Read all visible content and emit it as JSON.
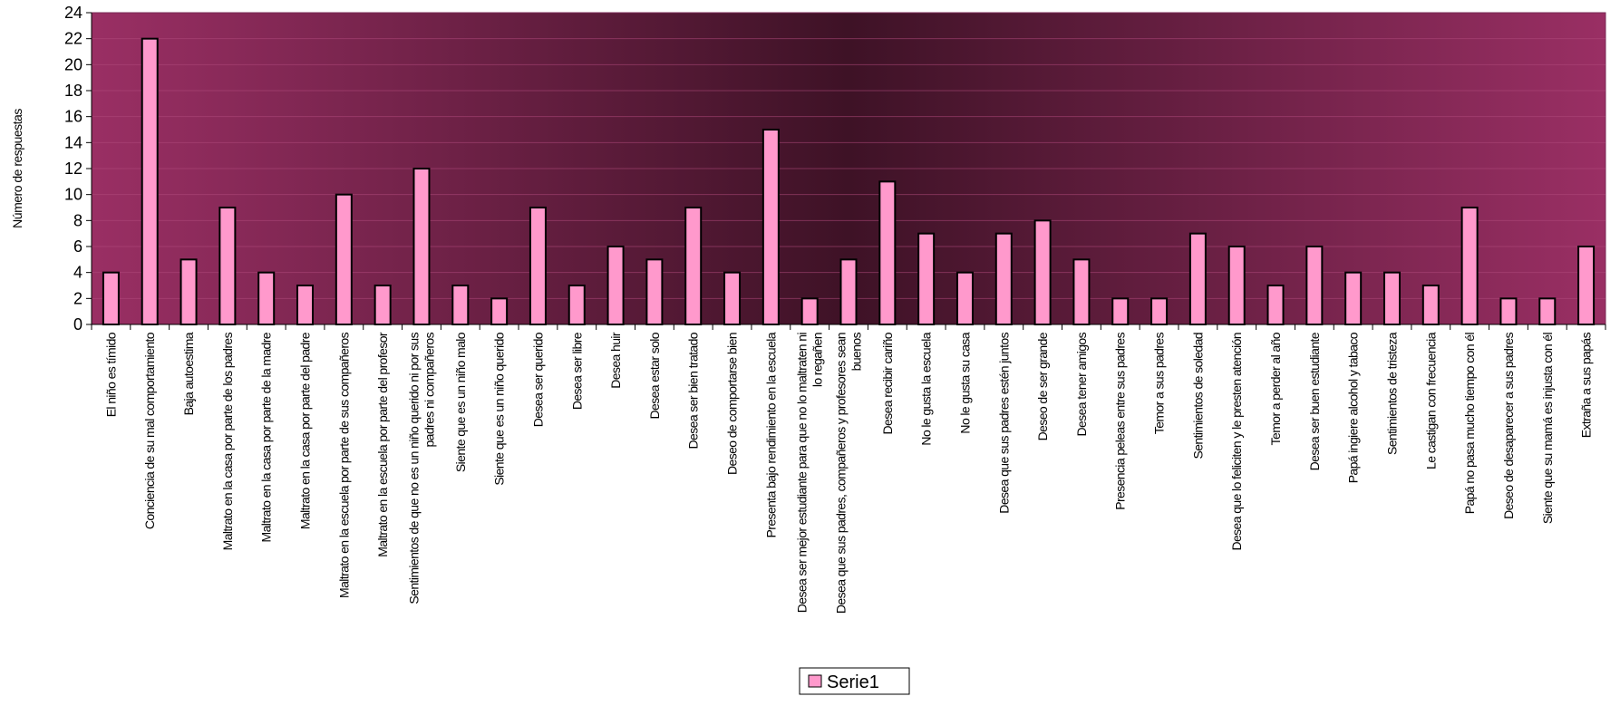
{
  "chart_data": {
    "type": "bar",
    "title": "",
    "xlabel": "",
    "ylabel": "Número de respuestas",
    "ylim": [
      0,
      24
    ],
    "yticks": [
      0,
      2,
      4,
      6,
      8,
      10,
      12,
      14,
      16,
      18,
      20,
      22,
      24
    ],
    "grid": true,
    "legend_position": "bottom",
    "colors": {
      "plot_center": "#3e1226",
      "plot_edge": "#9a2f64",
      "bar_fill": "#ff99cc",
      "bar_stroke": "#000000",
      "gridline": "#b04a7c"
    },
    "categories": [
      [
        "El niño es tímido"
      ],
      [
        "Conciencia de su mal comportamiento"
      ],
      [
        "Baja autoestima"
      ],
      [
        "Maltrato en la casa por parte de los padres"
      ],
      [
        "Maltrato en la casa por parte de la madre"
      ],
      [
        "Maltrato en la casa por parte del padre"
      ],
      [
        "Maltrato en la escuela por parte de sus compañeros"
      ],
      [
        "Maltrato en la escuela por parte del profesor"
      ],
      [
        "Sentimientos de que no es un niño querido ni por sus",
        "padres ni compañeros"
      ],
      [
        "Siente que es un niño malo"
      ],
      [
        "Siente que es un niño querido"
      ],
      [
        "Desea ser querido"
      ],
      [
        "Desea ser libre"
      ],
      [
        "Desea huir"
      ],
      [
        "Desea estar solo"
      ],
      [
        "Desea ser bien tratado"
      ],
      [
        "Deseo de comportarse bien"
      ],
      [
        "Presenta bajo rendimiento en la escuela"
      ],
      [
        "Desea ser mejor estudiante para que no lo maltraten ni",
        "lo regañen"
      ],
      [
        "Desea que sus padres, compañeros y profesores sean",
        "buenos"
      ],
      [
        "Desea recibir cariño"
      ],
      [
        "No le gusta la escuela"
      ],
      [
        "No le gusta su casa"
      ],
      [
        "Desea que sus padres estén juntos"
      ],
      [
        "Deseo de ser grande"
      ],
      [
        "Desea tener amigos"
      ],
      [
        "Presencia peleas entre sus padres"
      ],
      [
        "Temor a sus padres"
      ],
      [
        "Sentimientos de soledad"
      ],
      [
        "Desea que lo feliciten y le presten atención"
      ],
      [
        "Temor a perder al año"
      ],
      [
        "Desea ser buen estudiante"
      ],
      [
        "Papá ingiere alcohol y tabaco"
      ],
      [
        "Sentimientos de tristeza"
      ],
      [
        "Le castigan con frecuencia"
      ],
      [
        "Papá no pasa mucho tiempo con él"
      ],
      [
        "Deseo de desaparecer a sus padres"
      ],
      [
        "Siente que su mamá es injusta con él"
      ],
      [
        "Extraña a sus papás"
      ]
    ],
    "series": [
      {
        "name": "Serie1",
        "values": [
          4,
          22,
          5,
          9,
          4,
          3,
          10,
          3,
          12,
          3,
          2,
          9,
          3,
          6,
          5,
          9,
          4,
          15,
          2,
          5,
          11,
          7,
          4,
          7,
          8,
          5,
          2,
          2,
          7,
          6,
          3,
          6,
          4,
          4,
          3,
          9,
          2,
          2,
          6
        ]
      }
    ]
  }
}
